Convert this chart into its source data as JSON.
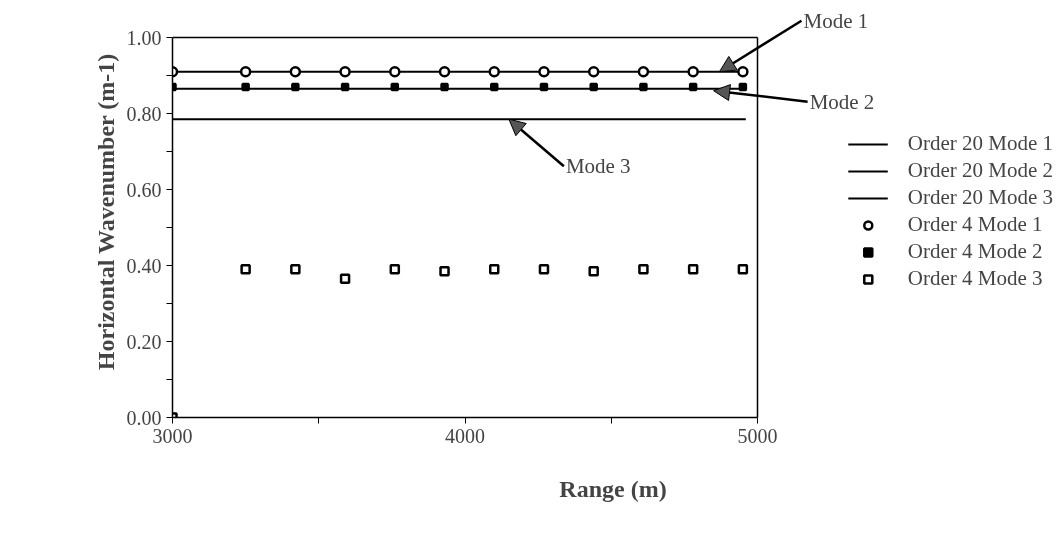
{
  "chart_data": {
    "type": "scatter",
    "xlabel": "Range (m)",
    "ylabel": "Horizontal Wavenumber (m-1)",
    "xlim": [
      3000,
      5000
    ],
    "ylim": [
      0,
      1
    ],
    "xticks": [
      3000,
      {
        "value": 3500,
        "label": null
      },
      4000,
      {
        "value": 4500,
        "label": null
      },
      5000
    ],
    "yticks": [
      {
        "value": 0,
        "label": "0.00"
      },
      {
        "value": 0.1,
        "label": null
      },
      {
        "value": 0.2,
        "label": "0.20"
      },
      {
        "value": 0.3,
        "label": null
      },
      {
        "value": 0.4,
        "label": "0.40"
      },
      {
        "value": 0.5,
        "label": null
      },
      {
        "value": 0.6,
        "label": "0.60"
      },
      {
        "value": 0.7,
        "label": null
      },
      {
        "value": 0.8,
        "label": "0.80"
      },
      {
        "value": 0.9,
        "label": null
      },
      {
        "value": 1,
        "label": "1.00"
      }
    ],
    "grid": false,
    "legend": "right",
    "series": [
      {
        "name": "Order 20 Mode 1",
        "type": "line",
        "color": "#000000",
        "line_style": "solid",
        "x": [
          3000,
          4960
        ],
        "values": [
          0.91,
          0.91
        ]
      },
      {
        "name": "Order 20 Mode 2",
        "type": "line",
        "color": "#000000",
        "line_style": "solid",
        "x": [
          3000,
          4960
        ],
        "values": [
          0.865,
          0.865
        ]
      },
      {
        "name": "Order 20 Mode 3",
        "type": "line",
        "color": "#000000",
        "line_style": "solid",
        "x": [
          3000,
          4960
        ],
        "values": [
          0.785,
          0.785
        ]
      },
      {
        "name": "Order 4 Mode 1",
        "marker": "circle",
        "color": "#000000",
        "x": [
          3000,
          3250,
          3420,
          3590,
          3760,
          3930,
          4100,
          4270,
          4440,
          4610,
          4780,
          4950
        ],
        "values": [
          0.91,
          0.91,
          0.91,
          0.91,
          0.91,
          0.91,
          0.91,
          0.91,
          0.91,
          0.91,
          0.91,
          0.91
        ]
      },
      {
        "name": "Order 4 Mode 2",
        "marker": "square",
        "color": "#000000",
        "x": [
          3000,
          3250,
          3420,
          3590,
          3760,
          3930,
          4100,
          4270,
          4440,
          4610,
          4780,
          4950
        ],
        "values": [
          0.87,
          0.87,
          0.87,
          0.87,
          0.87,
          0.87,
          0.87,
          0.87,
          0.87,
          0.87,
          0.87,
          0.87
        ]
      },
      {
        "name": "Order 4 Mode 3",
        "marker": "square",
        "color": "#000000",
        "x": [
          3000,
          3250,
          3420,
          3590,
          3760,
          3930,
          4100,
          4270,
          4440,
          4610,
          4780,
          4950
        ],
        "values": [
          0,
          0.39,
          0.39,
          0.365,
          0.39,
          0.385,
          0.39,
          0.39,
          0.385,
          0.39,
          0.39,
          0.39
        ]
      }
    ],
    "annotations": [
      {
        "text": "Mode 1",
        "x": 4870,
        "y": 0.91
      },
      {
        "text": "Mode 2",
        "x": 4850,
        "y": 0.86
      },
      {
        "text": "Mode 3",
        "x": 4150,
        "y": 0.785
      }
    ]
  }
}
